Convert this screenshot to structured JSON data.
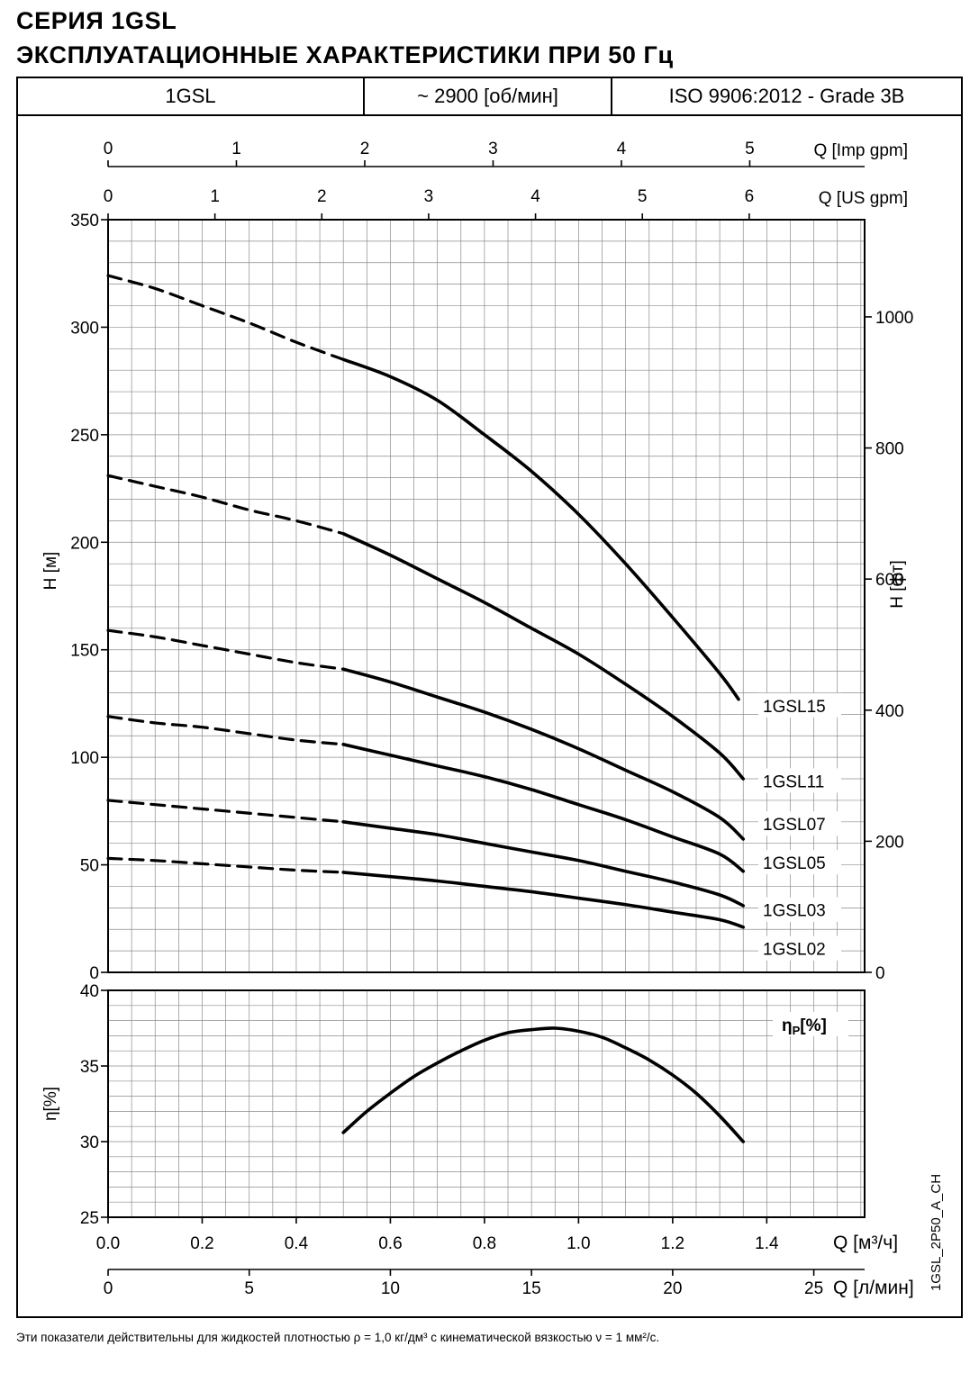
{
  "page": {
    "title_line1": "СЕРИЯ 1GSL",
    "title_line2": "ЭКСПЛУАТАЦИОННЫЕ ХАРАКТЕРИСТИКИ ПРИ 50 Гц",
    "footer_note": "Эти показатели действительны для жидкостей плотностью ρ = 1,0 кг/дм³ с кинематической вязкостью ν = 1 мм²/с.",
    "side_label": "1GSL_2P50_A_CH"
  },
  "header": {
    "model": "1GSL",
    "speed": "~ 2900 [об/мин]",
    "standard": "ISO 9906:2012 - Grade 3B"
  },
  "colors": {
    "curve": "#000000",
    "grid": "#8c8c8c",
    "frame": "#000000"
  },
  "chart_data": [
    {
      "type": "line",
      "x_axis_bottom": {
        "label": "Q [м³/ч]",
        "ticks": [
          0.0,
          0.2,
          0.4,
          0.6,
          0.8,
          1.0,
          1.2,
          1.4
        ],
        "range": [
          0,
          1.608
        ]
      },
      "x_axis_bottom2": {
        "label": "Q [л/мин]",
        "ticks": [
          0,
          5,
          10,
          15,
          20,
          25
        ],
        "lmin_per_m3h": 16.6667
      },
      "x_axis_top1": {
        "label": "Q [Imp gpm]",
        "ticks": [
          0,
          1,
          2,
          3,
          4,
          5
        ],
        "m3h_per_unit": 0.27277
      },
      "x_axis_top2": {
        "label": "Q [US gpm]",
        "ticks": [
          0,
          1,
          2,
          3,
          4,
          5,
          6
        ],
        "m3h_per_unit": 0.22712
      },
      "y_axis_left": {
        "label": "H [м]",
        "range": [
          0,
          350
        ],
        "ticks": [
          0,
          50,
          100,
          150,
          200,
          250,
          300,
          350
        ]
      },
      "y_axis_right": {
        "label": "H [фт]",
        "ticks": [
          0,
          200,
          400,
          600,
          800,
          1000
        ],
        "ft_per_m": 3.2808
      },
      "grid": {
        "on": true,
        "x_step": 0.05,
        "y_step": 10
      },
      "series": [
        {
          "name": "1GSL15",
          "solid_from": 0.5,
          "label_h": 124,
          "points": [
            [
              0,
              324
            ],
            [
              0.1,
              318
            ],
            [
              0.2,
              310
            ],
            [
              0.3,
              302
            ],
            [
              0.4,
              293
            ],
            [
              0.5,
              285
            ],
            [
              0.6,
              277
            ],
            [
              0.7,
              266
            ],
            [
              0.8,
              250
            ],
            [
              0.9,
              233
            ],
            [
              1.0,
              213
            ],
            [
              1.1,
              190
            ],
            [
              1.2,
              165
            ],
            [
              1.3,
              139
            ],
            [
              1.34,
              127
            ]
          ]
        },
        {
          "name": "1GSL11",
          "solid_from": 0.5,
          "label_h": 89,
          "points": [
            [
              0,
              231
            ],
            [
              0.1,
              226
            ],
            [
              0.2,
              221
            ],
            [
              0.3,
              215
            ],
            [
              0.4,
              210
            ],
            [
              0.5,
              204
            ],
            [
              0.6,
              194
            ],
            [
              0.7,
              183
            ],
            [
              0.8,
              172
            ],
            [
              0.9,
              160
            ],
            [
              1.0,
              148
            ],
            [
              1.1,
              134
            ],
            [
              1.2,
              119
            ],
            [
              1.3,
              102
            ],
            [
              1.35,
              90
            ]
          ]
        },
        {
          "name": "1GSL07",
          "solid_from": 0.5,
          "label_h": 69,
          "points": [
            [
              0,
              159
            ],
            [
              0.1,
              156
            ],
            [
              0.2,
              152
            ],
            [
              0.3,
              148
            ],
            [
              0.4,
              144
            ],
            [
              0.5,
              141
            ],
            [
              0.6,
              135
            ],
            [
              0.7,
              128
            ],
            [
              0.8,
              121
            ],
            [
              0.9,
              113
            ],
            [
              1.0,
              104
            ],
            [
              1.1,
              94
            ],
            [
              1.2,
              84
            ],
            [
              1.3,
              72
            ],
            [
              1.35,
              62
            ]
          ]
        },
        {
          "name": "1GSL05",
          "solid_from": 0.5,
          "label_h": 51,
          "points": [
            [
              0,
              119
            ],
            [
              0.1,
              116
            ],
            [
              0.2,
              114
            ],
            [
              0.3,
              111
            ],
            [
              0.4,
              108
            ],
            [
              0.5,
              106
            ],
            [
              0.6,
              101
            ],
            [
              0.7,
              96
            ],
            [
              0.8,
              91
            ],
            [
              0.9,
              85
            ],
            [
              1.0,
              78
            ],
            [
              1.1,
              71
            ],
            [
              1.2,
              63
            ],
            [
              1.3,
              55
            ],
            [
              1.35,
              47
            ]
          ]
        },
        {
          "name": "1GSL03",
          "solid_from": 0.5,
          "label_h": 29,
          "points": [
            [
              0,
              80
            ],
            [
              0.1,
              78
            ],
            [
              0.2,
              76
            ],
            [
              0.3,
              74
            ],
            [
              0.4,
              72
            ],
            [
              0.5,
              70
            ],
            [
              0.6,
              67
            ],
            [
              0.7,
              64
            ],
            [
              0.8,
              60
            ],
            [
              0.9,
              56
            ],
            [
              1.0,
              52
            ],
            [
              1.1,
              47
            ],
            [
              1.2,
              42
            ],
            [
              1.3,
              36
            ],
            [
              1.35,
              31
            ]
          ]
        },
        {
          "name": "1GSL02",
          "solid_from": 0.5,
          "label_h": 11,
          "points": [
            [
              0,
              53
            ],
            [
              0.1,
              52
            ],
            [
              0.2,
              50.5
            ],
            [
              0.3,
              49
            ],
            [
              0.4,
              47.5
            ],
            [
              0.5,
              46.5
            ],
            [
              0.6,
              44.5
            ],
            [
              0.7,
              42.5
            ],
            [
              0.8,
              40
            ],
            [
              0.9,
              37.5
            ],
            [
              1.0,
              34.5
            ],
            [
              1.1,
              31.5
            ],
            [
              1.2,
              28
            ],
            [
              1.3,
              24.5
            ],
            [
              1.35,
              21
            ]
          ]
        }
      ]
    },
    {
      "type": "line",
      "legend_label": {
        "main": "η",
        "sub": "P",
        "suffix": "[%]"
      },
      "y_axis_left": {
        "label": "η[%]",
        "range": [
          25,
          40
        ],
        "ticks": [
          25,
          30,
          35,
          40
        ]
      },
      "grid": {
        "on": true,
        "x_step": 0.05,
        "y_step": 1
      },
      "series": [
        {
          "name": "efficiency",
          "points": [
            [
              0.5,
              30.6
            ],
            [
              0.55,
              32.0
            ],
            [
              0.6,
              33.2
            ],
            [
              0.65,
              34.3
            ],
            [
              0.7,
              35.2
            ],
            [
              0.75,
              36.0
            ],
            [
              0.8,
              36.7
            ],
            [
              0.85,
              37.2
            ],
            [
              0.9,
              37.4
            ],
            [
              0.95,
              37.5
            ],
            [
              1.0,
              37.3
            ],
            [
              1.05,
              36.9
            ],
            [
              1.1,
              36.2
            ],
            [
              1.15,
              35.4
            ],
            [
              1.2,
              34.4
            ],
            [
              1.25,
              33.2
            ],
            [
              1.3,
              31.7
            ],
            [
              1.35,
              30.0
            ]
          ]
        }
      ]
    }
  ]
}
